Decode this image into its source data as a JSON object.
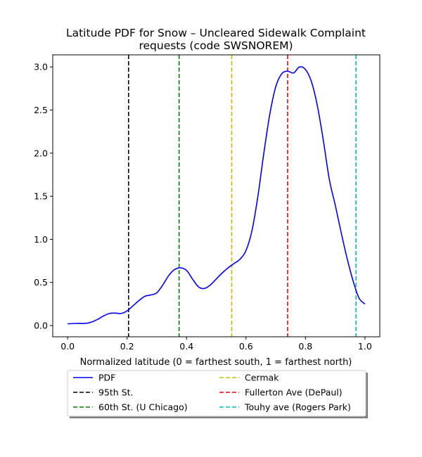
{
  "chart_data": {
    "type": "line",
    "title": [
      "Latitude PDF for Snow – Uncleared Sidewalk Complaint",
      "requests (code SWSNOREM)"
    ],
    "xlabel": "Normalized latitude (0 = farthest south, 1 = farthest north)",
    "ylabel": "",
    "xlim": [
      -0.05,
      1.05
    ],
    "ylim": [
      -0.13,
      3.14
    ],
    "xticks": [
      0.0,
      0.2,
      0.4,
      0.6,
      0.8,
      1.0
    ],
    "xtick_labels": [
      "0.0",
      "0.2",
      "0.4",
      "0.6",
      "0.8",
      "1.0"
    ],
    "yticks": [
      0.0,
      0.5,
      1.0,
      1.5,
      2.0,
      2.5,
      3.0
    ],
    "ytick_labels": [
      "0.0",
      "0.5",
      "1.0",
      "1.5",
      "2.0",
      "2.5",
      "3.0"
    ],
    "grid": false,
    "legend_placement": "below plot, two columns",
    "series": [
      {
        "name": "PDF",
        "color": "#0000ff",
        "style": "solid",
        "x": [
          0.0,
          0.03,
          0.06,
          0.08,
          0.1,
          0.12,
          0.14,
          0.16,
          0.18,
          0.2,
          0.22,
          0.24,
          0.26,
          0.28,
          0.3,
          0.32,
          0.34,
          0.36,
          0.38,
          0.4,
          0.42,
          0.44,
          0.46,
          0.48,
          0.5,
          0.52,
          0.54,
          0.56,
          0.58,
          0.6,
          0.62,
          0.64,
          0.66,
          0.68,
          0.7,
          0.72,
          0.74,
          0.76,
          0.78,
          0.8,
          0.82,
          0.84,
          0.86,
          0.88,
          0.9,
          0.92,
          0.94,
          0.96,
          0.98,
          1.0
        ],
        "values": [
          0.02,
          0.025,
          0.025,
          0.04,
          0.07,
          0.11,
          0.14,
          0.145,
          0.14,
          0.17,
          0.23,
          0.29,
          0.34,
          0.355,
          0.38,
          0.47,
          0.58,
          0.65,
          0.67,
          0.64,
          0.54,
          0.45,
          0.43,
          0.47,
          0.54,
          0.61,
          0.67,
          0.72,
          0.77,
          0.87,
          1.1,
          1.5,
          2.0,
          2.45,
          2.77,
          2.92,
          2.95,
          2.93,
          3.0,
          2.97,
          2.83,
          2.55,
          2.15,
          1.7,
          1.4,
          1.08,
          0.78,
          0.52,
          0.32,
          0.25
        ]
      }
    ],
    "reference_lines": [
      {
        "name": "95th St.",
        "x": 0.205,
        "color": "#000000"
      },
      {
        "name": "60th St. (U Chicago)",
        "x": 0.375,
        "color": "#008000"
      },
      {
        "name": "Cermak",
        "x": 0.552,
        "color": "#bfbf00"
      },
      {
        "name": "Fullerton Ave (DePaul)",
        "x": 0.74,
        "color": "#ff0000"
      },
      {
        "name": "Touhy ave (Rogers Park)",
        "x": 0.97,
        "color": "#00bfbf"
      }
    ],
    "legend": [
      "PDF",
      "95th St.",
      "60th St. (U Chicago)",
      "Cermak",
      "Fullerton Ave (DePaul)",
      "Touhy ave (Rogers Park)"
    ]
  }
}
